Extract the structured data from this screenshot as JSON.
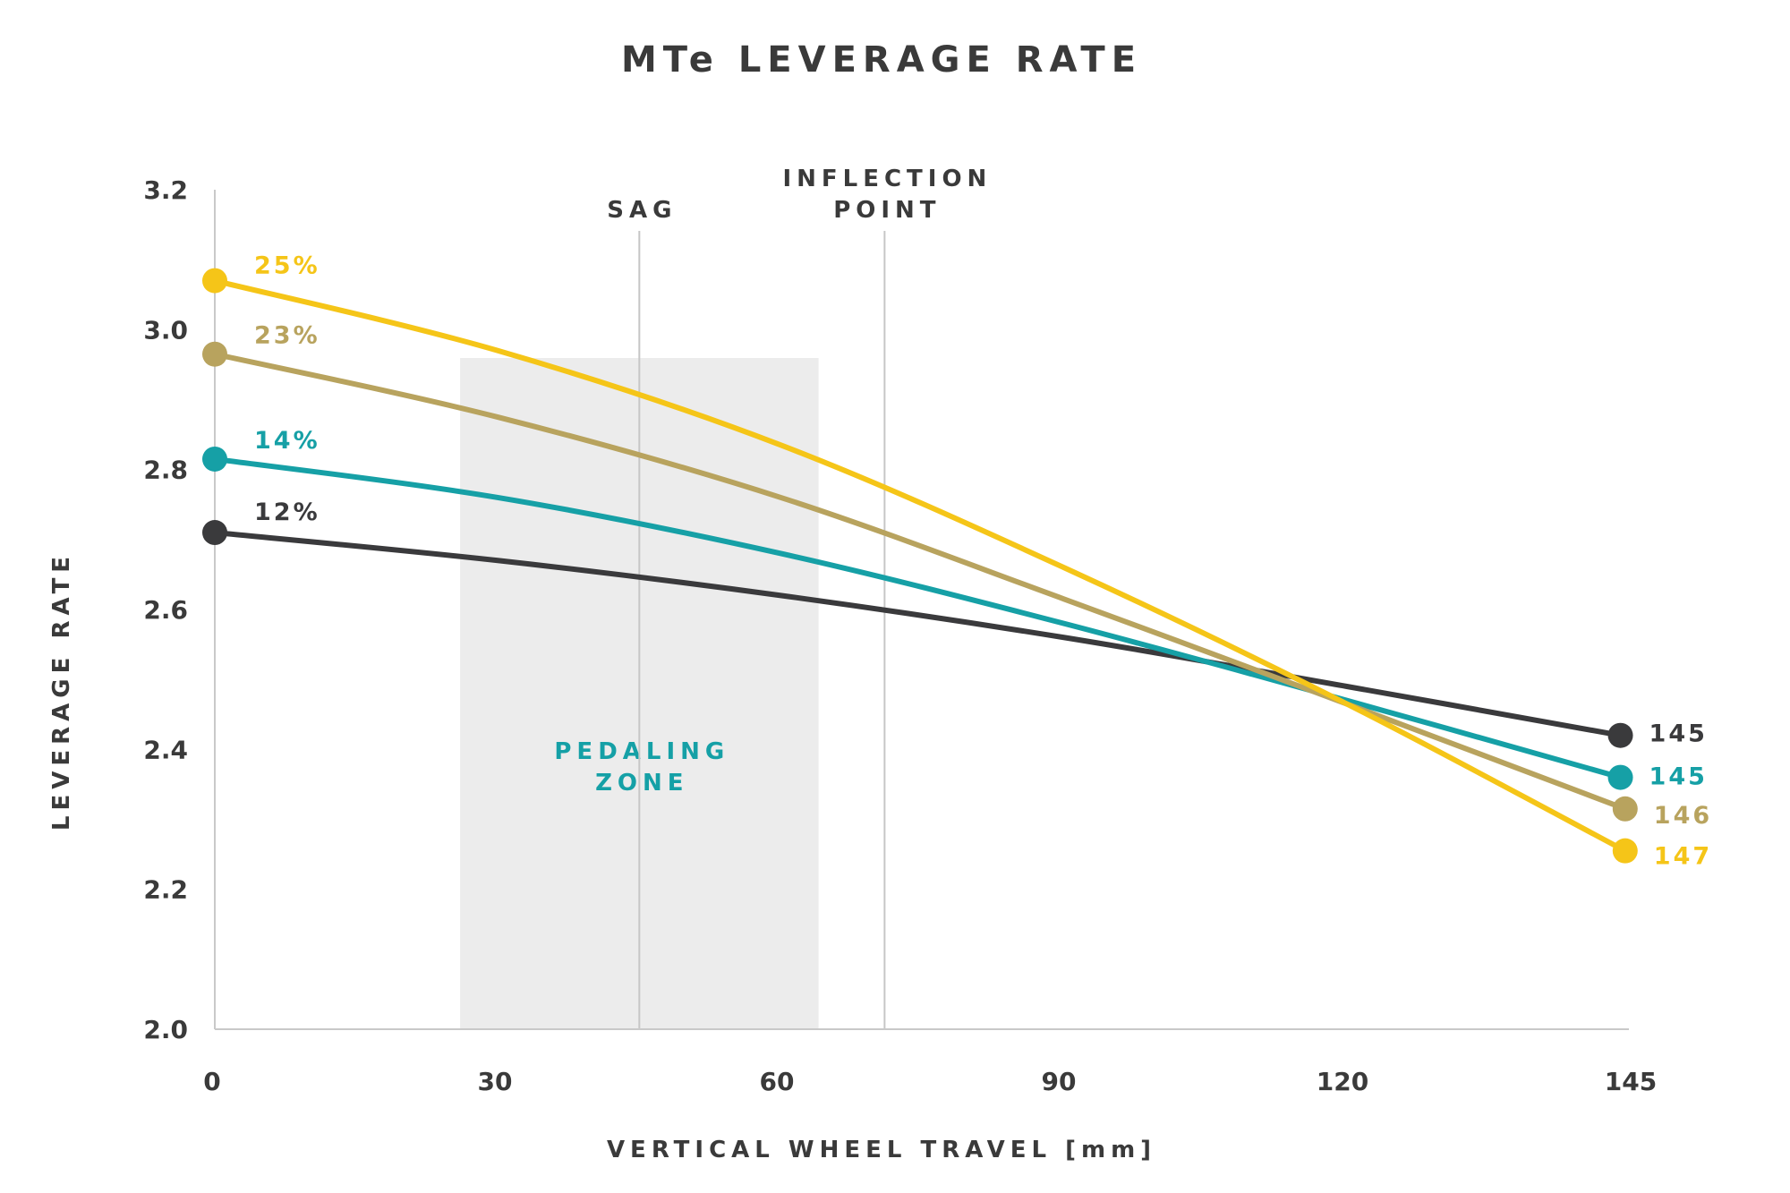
{
  "chart_data": {
    "type": "line",
    "title": "MTe LEVERAGE RATE",
    "xlabel": "VERTICAL WHEEL TRAVEL [mm]",
    "ylabel": "LEVERAGE RATE",
    "xlim": [
      0,
      148
    ],
    "ylim": [
      2.0,
      3.2
    ],
    "x_ticks": [
      0,
      30,
      60,
      90,
      120,
      145
    ],
    "x_tick_labels": [
      "0",
      "30",
      "60",
      "90",
      "120",
      "145"
    ],
    "y_ticks": [
      2.0,
      2.2,
      2.4,
      2.6,
      2.8,
      3.0,
      3.2
    ],
    "y_tick_labels": [
      "2.0",
      "2.2",
      "2.4",
      "2.6",
      "2.8",
      "3.0",
      "3.2"
    ],
    "grid": false,
    "region": {
      "name": "PEDALING ZONE",
      "label_lines": [
        "PEDALING",
        "ZONE"
      ],
      "x_start": 26,
      "x_end": 64,
      "color": "#ececec"
    },
    "vlines": [
      {
        "name": "sag",
        "x": 45,
        "label_lines": [
          "SAG"
        ]
      },
      {
        "name": "inflection-point",
        "x": 71,
        "label_lines": [
          "INFLECTION",
          "POINT"
        ]
      }
    ],
    "series": [
      {
        "name": "12%",
        "start_label": "12%",
        "end_label": "145",
        "color": "#3a3a3c",
        "x": [
          0,
          30,
          60,
          90,
          120,
          149
        ],
        "y": [
          2.71,
          2.67,
          2.62,
          2.56,
          2.49,
          2.42
        ]
      },
      {
        "name": "14%",
        "start_label": "14%",
        "end_label": "145",
        "color": "#16a0a6",
        "x": [
          0,
          30,
          60,
          90,
          120,
          149
        ],
        "y": [
          2.815,
          2.76,
          2.68,
          2.58,
          2.47,
          2.36
        ]
      },
      {
        "name": "23%",
        "start_label": "23%",
        "end_label": "146",
        "color": "#b8a35e",
        "x": [
          0,
          30,
          60,
          90,
          120,
          149.5
        ],
        "y": [
          2.965,
          2.875,
          2.76,
          2.615,
          2.465,
          2.315
        ]
      },
      {
        "name": "25%",
        "start_label": "25%",
        "end_label": "147",
        "color": "#f5c518",
        "x": [
          0,
          30,
          60,
          90,
          120,
          149.5
        ],
        "y": [
          3.07,
          2.97,
          2.835,
          2.66,
          2.465,
          2.255
        ]
      }
    ]
  }
}
